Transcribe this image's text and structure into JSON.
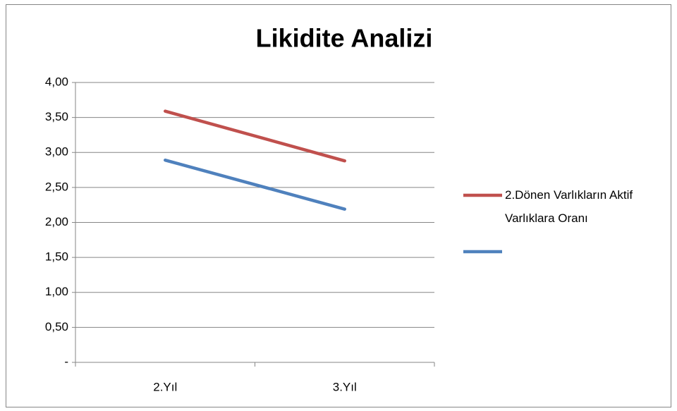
{
  "chart_data": {
    "type": "line",
    "title": "Likidite Analizi",
    "categories": [
      "2.Yıl",
      "3.Yıl"
    ],
    "series": [
      {
        "name": "2.Dönen Varlıkların Aktif Varlıklara Oranı",
        "color": "#c0504d",
        "values": [
          3.59,
          2.88
        ]
      },
      {
        "color": "#4f81bd",
        "values": [
          2.89,
          2.19
        ]
      }
    ],
    "ylim": [
      0,
      4
    ],
    "yticks": [
      {
        "value": 0,
        "label": "-"
      },
      {
        "value": 0.5,
        "label": "0,50"
      },
      {
        "value": 1,
        "label": "1,00"
      },
      {
        "value": 1.5,
        "label": "1,50"
      },
      {
        "value": 2,
        "label": "2,00"
      },
      {
        "value": 2.5,
        "label": "2,50"
      },
      {
        "value": 3,
        "label": "3,00"
      },
      {
        "value": 3.5,
        "label": "3,50"
      },
      {
        "value": 4,
        "label": "4,00"
      }
    ],
    "grid": true,
    "legend": "right"
  }
}
